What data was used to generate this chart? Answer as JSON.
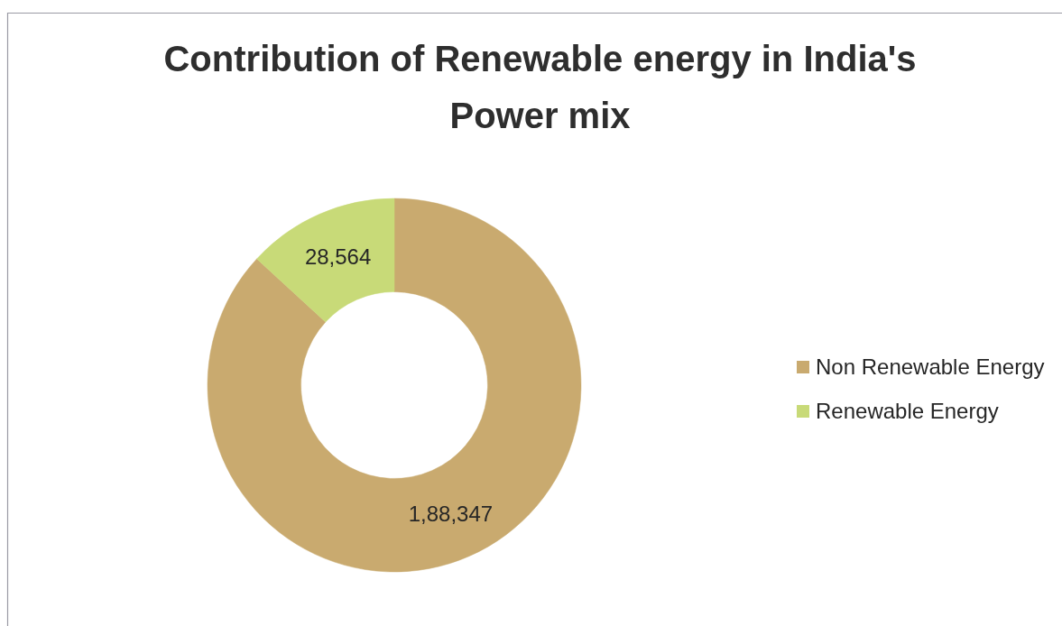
{
  "chart_data": {
    "type": "donut",
    "title": "Contribution of Renewable energy in India's Power mix",
    "categories": [
      "Non Renewable Energy",
      "Renewable Energy"
    ],
    "values": [
      188347,
      28564
    ],
    "colors": [
      "#c9aa6f",
      "#c8da78"
    ],
    "value_labels": [
      "1,88,347",
      "28,564"
    ],
    "legend": "right"
  }
}
